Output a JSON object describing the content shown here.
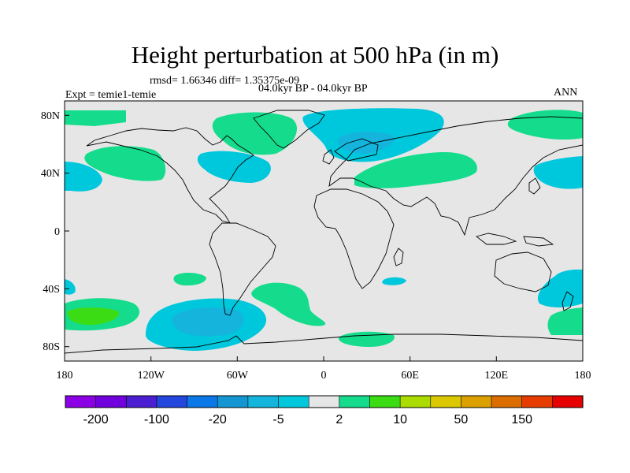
{
  "header": {
    "title": "Height perturbation at 500 hPa (in m)",
    "stats": "rmsd= 1.66346 diff= 1.35375e-09",
    "experiment": "Expt = temie1-temie",
    "period": "04.0kyr BP - 04.0kyr BP",
    "season": "ANN"
  },
  "axes": {
    "x_ticks": [
      "180",
      "120W",
      "60W",
      "0",
      "60E",
      "120E",
      "180"
    ],
    "y_ticks": [
      "80N",
      "40N",
      "0",
      "40S",
      "80S"
    ],
    "lon_range": [
      -180,
      180
    ],
    "lat_range": [
      -90,
      90
    ]
  },
  "colorbar": {
    "labels": [
      "-200",
      "-100",
      "-20",
      "-5",
      "2",
      "10",
      "50",
      "150"
    ],
    "colors": [
      "#8c00e6",
      "#7000dc",
      "#4b1ed2",
      "#2346dc",
      "#0a78e6",
      "#1496d2",
      "#14b4dc",
      "#00c8dc",
      "#e6e6e6",
      "#14dc8c",
      "#3cdc14",
      "#aadc00",
      "#dcc800",
      "#dca000",
      "#dc6e00",
      "#e63c00",
      "#e60000"
    ]
  },
  "map": {
    "background_color": "#e6e6e6",
    "fill_light_blue": "#00c8dc",
    "fill_mid_blue": "#14b4dc",
    "fill_dark_blue": "#1496d2",
    "fill_green": "#14dc8c",
    "fill_bright_green": "#3cdc14"
  }
}
